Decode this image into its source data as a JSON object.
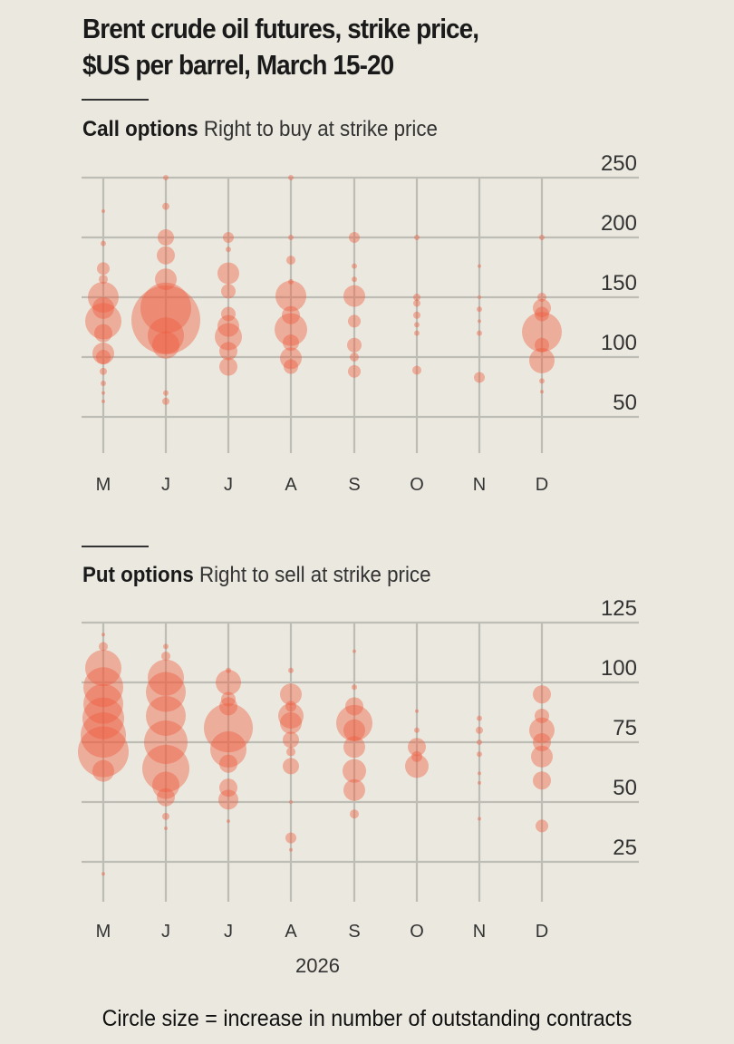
{
  "title_line1": "Brent crude oil futures, strike price,",
  "title_line2": "$US per barrel, March 15-20",
  "footnote": "Circle size = increase in number of outstanding contracts",
  "colors": {
    "bubble": "#ee5a3e",
    "grid": "#bdbdb5",
    "background": "#ebe9df"
  },
  "chart_data": [
    {
      "type": "bubble",
      "title": "Call options",
      "subtitle": "Right to buy at strike price",
      "categories": [
        "M",
        "J",
        "J",
        "A",
        "S",
        "O",
        "N",
        "D"
      ],
      "y_ticks": [
        250,
        200,
        150,
        100,
        50
      ],
      "ylim": [
        0,
        250
      ],
      "y_axis_position": "right",
      "grid": true,
      "points": [
        [
          0,
          222,
          2
        ],
        [
          0,
          195,
          3
        ],
        [
          0,
          174,
          7
        ],
        [
          0,
          165,
          5
        ],
        [
          0,
          150,
          17
        ],
        [
          0,
          141,
          12
        ],
        [
          0,
          130,
          20
        ],
        [
          0,
          120,
          10
        ],
        [
          0,
          103,
          12
        ],
        [
          0,
          100,
          8
        ],
        [
          0,
          88,
          4
        ],
        [
          0,
          78,
          3
        ],
        [
          0,
          70,
          2
        ],
        [
          0,
          63,
          2
        ],
        [
          1,
          250,
          3
        ],
        [
          1,
          226,
          4
        ],
        [
          1,
          200,
          9
        ],
        [
          1,
          185,
          10
        ],
        [
          1,
          165,
          12
        ],
        [
          1,
          141,
          28
        ],
        [
          1,
          131,
          38
        ],
        [
          1,
          118,
          20
        ],
        [
          1,
          110,
          15
        ],
        [
          1,
          70,
          3
        ],
        [
          1,
          63,
          4
        ],
        [
          2,
          200,
          6
        ],
        [
          2,
          190,
          3
        ],
        [
          2,
          170,
          12
        ],
        [
          2,
          155,
          8
        ],
        [
          2,
          136,
          8
        ],
        [
          2,
          126,
          12
        ],
        [
          2,
          117,
          15
        ],
        [
          2,
          105,
          10
        ],
        [
          2,
          92,
          10
        ],
        [
          3,
          250,
          3
        ],
        [
          3,
          200,
          3
        ],
        [
          3,
          181,
          5
        ],
        [
          3,
          163,
          3
        ],
        [
          3,
          151,
          17
        ],
        [
          3,
          135,
          10
        ],
        [
          3,
          123,
          18
        ],
        [
          3,
          112,
          9
        ],
        [
          3,
          99,
          12
        ],
        [
          3,
          92,
          8
        ],
        [
          4,
          200,
          6
        ],
        [
          4,
          176,
          3
        ],
        [
          4,
          165,
          3
        ],
        [
          4,
          151,
          12
        ],
        [
          4,
          130,
          7
        ],
        [
          4,
          110,
          8
        ],
        [
          4,
          100,
          5
        ],
        [
          4,
          88,
          7
        ],
        [
          5,
          200,
          3
        ],
        [
          5,
          150,
          4
        ],
        [
          5,
          145,
          4
        ],
        [
          5,
          135,
          4
        ],
        [
          5,
          127,
          3
        ],
        [
          5,
          120,
          3
        ],
        [
          5,
          89,
          5
        ],
        [
          6,
          176,
          2
        ],
        [
          6,
          150,
          2
        ],
        [
          6,
          140,
          3
        ],
        [
          6,
          130,
          2
        ],
        [
          6,
          120,
          3
        ],
        [
          6,
          83,
          6
        ],
        [
          7,
          200,
          3
        ],
        [
          7,
          150,
          5
        ],
        [
          7,
          141,
          10
        ],
        [
          7,
          136,
          8
        ],
        [
          7,
          121,
          22
        ],
        [
          7,
          110,
          8
        ],
        [
          7,
          97,
          14
        ],
        [
          7,
          80,
          3
        ],
        [
          7,
          71,
          2
        ]
      ]
    },
    {
      "type": "bubble",
      "title": "Put options",
      "subtitle": "Right to sell at strike price",
      "categories": [
        "M",
        "J",
        "J",
        "A",
        "S",
        "O",
        "N",
        "D"
      ],
      "y_ticks": [
        125,
        100,
        75,
        50,
        25
      ],
      "ylim": [
        10,
        125
      ],
      "y_axis_position": "right",
      "grid": true,
      "xlabel": "2026",
      "points": [
        [
          0,
          120,
          2
        ],
        [
          0,
          115,
          5
        ],
        [
          0,
          106,
          20
        ],
        [
          0,
          98,
          22
        ],
        [
          0,
          91,
          22
        ],
        [
          0,
          85,
          23
        ],
        [
          0,
          78,
          25
        ],
        [
          0,
          71,
          28
        ],
        [
          0,
          63,
          12
        ],
        [
          0,
          20,
          2
        ],
        [
          1,
          115,
          3
        ],
        [
          1,
          111,
          5
        ],
        [
          1,
          102,
          20
        ],
        [
          1,
          96,
          22
        ],
        [
          1,
          86,
          22
        ],
        [
          1,
          75,
          24
        ],
        [
          1,
          64,
          26
        ],
        [
          1,
          57,
          15
        ],
        [
          1,
          52,
          10
        ],
        [
          1,
          44,
          4
        ],
        [
          1,
          39,
          2
        ],
        [
          2,
          105,
          3
        ],
        [
          2,
          100,
          14
        ],
        [
          2,
          93,
          8
        ],
        [
          2,
          90,
          10
        ],
        [
          2,
          81,
          27
        ],
        [
          2,
          72,
          20
        ],
        [
          2,
          66,
          10
        ],
        [
          2,
          56,
          10
        ],
        [
          2,
          51,
          11
        ],
        [
          2,
          42,
          2
        ],
        [
          3,
          105,
          3
        ],
        [
          3,
          95,
          12
        ],
        [
          3,
          90,
          6
        ],
        [
          3,
          86,
          14
        ],
        [
          3,
          83,
          12
        ],
        [
          3,
          76,
          9
        ],
        [
          3,
          71,
          5
        ],
        [
          3,
          65,
          9
        ],
        [
          3,
          50,
          2
        ],
        [
          3,
          35,
          6
        ],
        [
          3,
          30,
          2
        ],
        [
          4,
          113,
          2
        ],
        [
          4,
          98,
          3
        ],
        [
          4,
          90,
          10
        ],
        [
          4,
          83,
          20
        ],
        [
          4,
          80,
          12
        ],
        [
          4,
          73,
          12
        ],
        [
          4,
          63,
          13
        ],
        [
          4,
          55,
          12
        ],
        [
          4,
          45,
          5
        ],
        [
          5,
          88,
          2
        ],
        [
          5,
          80,
          3
        ],
        [
          5,
          73,
          10
        ],
        [
          5,
          69,
          6
        ],
        [
          5,
          65,
          13
        ],
        [
          6,
          85,
          3
        ],
        [
          6,
          80,
          4
        ],
        [
          6,
          75,
          3
        ],
        [
          6,
          70,
          3
        ],
        [
          6,
          62,
          2
        ],
        [
          6,
          58,
          2
        ],
        [
          6,
          43,
          2
        ],
        [
          7,
          95,
          10
        ],
        [
          7,
          86,
          8
        ],
        [
          7,
          80,
          14
        ],
        [
          7,
          75,
          10
        ],
        [
          7,
          69,
          12
        ],
        [
          7,
          59,
          10
        ],
        [
          7,
          40,
          7
        ]
      ]
    }
  ]
}
